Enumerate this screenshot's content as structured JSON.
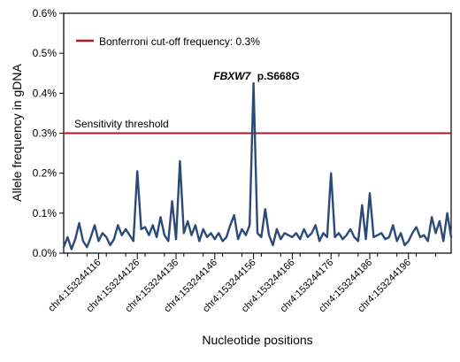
{
  "colors": {
    "series": "#2b4a7a",
    "threshold": "#a8182d",
    "axis": "#000000"
  },
  "chart_data": {
    "type": "line",
    "xlabel": "Nucleotide positions",
    "ylabel": "Allele frequency in gDNA",
    "ylim": [
      0,
      0.6
    ],
    "yticks": [
      0.0,
      0.1,
      0.2,
      0.3,
      0.4,
      0.5,
      0.6
    ],
    "ytick_labels": [
      "0.0%",
      "0.1%",
      "0.2%",
      "0.3%",
      "0.4%",
      "0.5%",
      "0.6%"
    ],
    "xlim": [
      153244107,
      153244207
    ],
    "xticks": [
      153244116,
      153244126,
      153244136,
      153244146,
      153244156,
      153244166,
      153244176,
      153244186,
      153244196
    ],
    "xtick_labels": [
      "chr4:153244116",
      "chr4:153244126",
      "chr4:153244136",
      "chr4:153244146",
      "chr4:153244156",
      "chr4:153244166",
      "chr4:153244176",
      "chr4:153244186",
      "chr4:153244196"
    ],
    "legend": {
      "position": "top-left",
      "entries": [
        "Bonferroni cut-off frequency: 0.3%"
      ]
    },
    "threshold": {
      "y": 0.3,
      "label": "Sensitivity threshold"
    },
    "annotation": {
      "x": 153244156,
      "y": 0.42,
      "gene": "FBXW7",
      "mutation": "p.S668G"
    },
    "grid": false,
    "x": [
      153244107,
      153244108,
      153244109,
      153244110,
      153244111,
      153244112,
      153244113,
      153244114,
      153244115,
      153244116,
      153244117,
      153244118,
      153244119,
      153244120,
      153244121,
      153244122,
      153244123,
      153244124,
      153244125,
      153244126,
      153244127,
      153244128,
      153244129,
      153244130,
      153244131,
      153244132,
      153244133,
      153244134,
      153244135,
      153244136,
      153244137,
      153244138,
      153244139,
      153244140,
      153244141,
      153244142,
      153244143,
      153244144,
      153244145,
      153244146,
      153244147,
      153244148,
      153244149,
      153244150,
      153244151,
      153244152,
      153244153,
      153244154,
      153244155,
      153244156,
      153244157,
      153244158,
      153244159,
      153244160,
      153244161,
      153244162,
      153244163,
      153244164,
      153244165,
      153244166,
      153244167,
      153244168,
      153244169,
      153244170,
      153244171,
      153244172,
      153244173,
      153244174,
      153244175,
      153244176,
      153244177,
      153244178,
      153244179,
      153244180,
      153244181,
      153244182,
      153244183,
      153244184,
      153244185,
      153244186,
      153244187,
      153244188,
      153244189,
      153244190,
      153244191,
      153244192,
      153244193,
      153244194,
      153244195,
      153244196,
      153244197,
      153244198,
      153244199,
      153244200,
      153244201,
      153244202,
      153244203,
      153244204,
      153244205,
      153244206,
      153244207
    ],
    "series": [
      {
        "values": [
          0.015,
          0.04,
          0.01,
          0.035,
          0.075,
          0.03,
          0.015,
          0.04,
          0.07,
          0.03,
          0.05,
          0.04,
          0.02,
          0.035,
          0.07,
          0.045,
          0.06,
          0.045,
          0.03,
          0.205,
          0.06,
          0.065,
          0.045,
          0.07,
          0.04,
          0.09,
          0.045,
          0.03,
          0.13,
          0.035,
          0.23,
          0.05,
          0.08,
          0.045,
          0.07,
          0.03,
          0.06,
          0.04,
          0.05,
          0.035,
          0.05,
          0.03,
          0.04,
          0.07,
          0.095,
          0.035,
          0.06,
          0.045,
          0.07,
          0.425,
          0.05,
          0.04,
          0.11,
          0.045,
          0.02,
          0.06,
          0.035,
          0.05,
          0.045,
          0.04,
          0.05,
          0.035,
          0.06,
          0.04,
          0.05,
          0.07,
          0.03,
          0.05,
          0.04,
          0.2,
          0.04,
          0.05,
          0.035,
          0.045,
          0.06,
          0.04,
          0.03,
          0.12,
          0.035,
          0.15,
          0.04,
          0.045,
          0.05,
          0.035,
          0.04,
          0.07,
          0.03,
          0.05,
          0.02,
          0.03,
          0.05,
          0.065,
          0.04,
          0.045,
          0.03,
          0.09,
          0.05,
          0.08,
          0.03,
          0.1,
          0.04
        ]
      }
    ]
  }
}
